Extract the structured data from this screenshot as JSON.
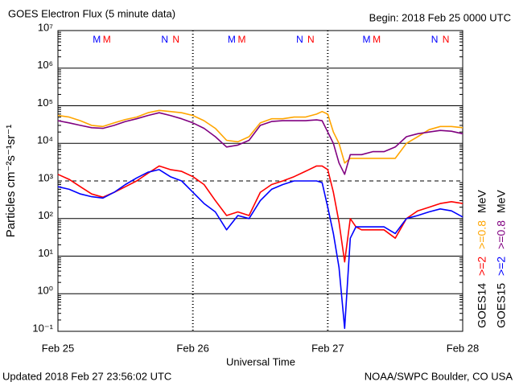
{
  "chart_data": {
    "type": "line",
    "title": "GOES Electron Flux (5 minute data)",
    "subtitle": "Begin: 2018 Feb 25 0000 UTC",
    "footer_left": "Updated 2018 Feb 27 23:56:02 UTC",
    "footer_right": "NOAA/SWPC Boulder, CO USA",
    "xlabel": "Universal Time",
    "ylabel": "Particles cm⁻²s⁻¹sr⁻¹",
    "log_y": true,
    "grid": true,
    "threshold": 1000,
    "xlim": [
      0,
      72
    ],
    "xticks": [
      {
        "value": 0,
        "label": "Feb 25"
      },
      {
        "value": 24,
        "label": "Feb 26"
      },
      {
        "value": 48,
        "label": "Feb 27"
      },
      {
        "value": 72,
        "label": "Feb 28"
      }
    ],
    "ylim": [
      0.1,
      10000000
    ],
    "yticks": [
      {
        "value": 0.1,
        "label": "10⁻¹"
      },
      {
        "value": 1,
        "label": "10⁰"
      },
      {
        "value": 10,
        "label": "10¹"
      },
      {
        "value": 100,
        "label": "10²"
      },
      {
        "value": 1000,
        "label": "10³"
      },
      {
        "value": 10000,
        "label": "10⁴"
      },
      {
        "value": 100000,
        "label": "10⁵"
      },
      {
        "value": 1000000,
        "label": "10⁶"
      },
      {
        "value": 10000000,
        "label": "10⁷"
      }
    ],
    "legend_columns": [
      "GOES14",
      "GOES15"
    ],
    "legend_unit": "MeV",
    "x": [
      0,
      2,
      4,
      6,
      8,
      10,
      12,
      14,
      16,
      18,
      20,
      22,
      24,
      26,
      28,
      30,
      32,
      34,
      36,
      38,
      40,
      42,
      44,
      46,
      47,
      48,
      49,
      50,
      51,
      52,
      53,
      54,
      56,
      58,
      60,
      62,
      64,
      66,
      68,
      70,
      72
    ],
    "series": [
      {
        "name": ">=2",
        "color": "#ff0000",
        "values": [
          1500,
          1100,
          700,
          450,
          370,
          500,
          700,
          1000,
          1600,
          2500,
          2000,
          1800,
          1300,
          800,
          300,
          120,
          150,
          120,
          500,
          800,
          1000,
          1300,
          1800,
          2500,
          2500,
          2000,
          500,
          80,
          7,
          100,
          60,
          50,
          50,
          50,
          30,
          100,
          160,
          200,
          250,
          280,
          250
        ]
      },
      {
        "name": ">=0.8",
        "color": "#ffa500",
        "values": [
          55000,
          50000,
          40000,
          30000,
          28000,
          35000,
          43000,
          50000,
          65000,
          75000,
          70000,
          65000,
          55000,
          40000,
          25000,
          12000,
          11000,
          15000,
          35000,
          45000,
          45000,
          50000,
          50000,
          60000,
          70000,
          60000,
          20000,
          10000,
          3000,
          4000,
          4000,
          4000,
          4000,
          4000,
          4000,
          10000,
          15000,
          23000,
          28000,
          28000,
          26000
        ]
      },
      {
        "name": ">=2",
        "color": "#0000ff",
        "values": [
          700,
          600,
          450,
          380,
          350,
          500,
          800,
          1200,
          1700,
          2000,
          1300,
          1000,
          500,
          250,
          150,
          50,
          120,
          100,
          300,
          600,
          800,
          1000,
          1000,
          1000,
          900,
          200,
          40,
          5,
          0.12,
          30,
          60,
          60,
          60,
          60,
          40,
          100,
          120,
          150,
          180,
          160,
          110
        ]
      },
      {
        "name": ">=0.8",
        "color": "#800080",
        "values": [
          40000,
          35000,
          30000,
          26000,
          25000,
          30000,
          38000,
          45000,
          55000,
          65000,
          55000,
          45000,
          35000,
          25000,
          15000,
          8000,
          9000,
          12000,
          30000,
          38000,
          40000,
          40000,
          40000,
          42000,
          40000,
          20000,
          10000,
          3000,
          1500,
          5000,
          5000,
          5000,
          6000,
          6000,
          8000,
          15000,
          18000,
          20000,
          22000,
          21000,
          18000
        ]
      }
    ],
    "annotations": [
      {
        "text": "M",
        "x": 6.9,
        "color": "#0000ff"
      },
      {
        "text": "M",
        "x": 8.7,
        "color": "#ff0000"
      },
      {
        "text": "N",
        "x": 19,
        "color": "#0000ff"
      },
      {
        "text": "N",
        "x": 21,
        "color": "#ff0000"
      },
      {
        "text": "M",
        "x": 30.9,
        "color": "#0000ff"
      },
      {
        "text": "M",
        "x": 32.7,
        "color": "#ff0000"
      },
      {
        "text": "N",
        "x": 43,
        "color": "#0000ff"
      },
      {
        "text": "N",
        "x": 45,
        "color": "#ff0000"
      },
      {
        "text": "M",
        "x": 54.9,
        "color": "#0000ff"
      },
      {
        "text": "M",
        "x": 56.7,
        "color": "#ff0000"
      },
      {
        "text": "N",
        "x": 67,
        "color": "#0000ff"
      },
      {
        "text": "N",
        "x": 69,
        "color": "#ff0000"
      }
    ]
  }
}
